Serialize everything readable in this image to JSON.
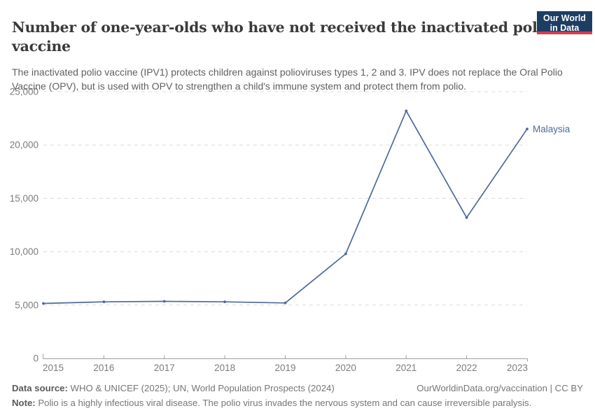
{
  "header": {
    "title": "Number of one-year-olds who have not received the inactivated polio vaccine",
    "subtitle": "The inactivated polio vaccine (IPV1) protects children against polioviruses types 1, 2 and 3. IPV does not replace the Oral Polio Vaccine (OPV), but is used with OPV to strengthen a child's immune system and protect them from polio.",
    "logo": {
      "line1": "Our World",
      "line2": "in Data",
      "bg_color": "#1d3d63",
      "accent_color": "#d73c4c"
    }
  },
  "chart_data": {
    "type": "line",
    "title": "Number of one-year-olds who have not received the inactivated polio vaccine",
    "x": [
      2015,
      2016,
      2017,
      2018,
      2019,
      2020,
      2021,
      2022,
      2023
    ],
    "series": [
      {
        "name": "Malaysia",
        "color": "#4c6a9c",
        "values": [
          5150,
          5300,
          5350,
          5300,
          5200,
          9800,
          23200,
          13200,
          21500
        ]
      }
    ],
    "xlabel": "",
    "ylabel": "",
    "ylim": [
      0,
      25000
    ],
    "yticks": [
      0,
      5000,
      10000,
      15000,
      20000,
      25000
    ],
    "grid": "horizontal dashed",
    "legend_position": "direct label at end of line",
    "axis_color": "#9e9e9e",
    "gridline_color": "#dcdcdc",
    "tick_label_color": "#7c7c7c"
  },
  "footer": {
    "datasource_label": "Data source:",
    "datasource_text": " WHO & UNICEF (2025); UN, World Population Prospects (2024)",
    "rights": "OurWorldinData.org/vaccination | CC BY",
    "note_label": "Note:",
    "note_text": " Polio is a highly infectious viral disease. The polio virus invades the nervous system and can cause irreversible paralysis."
  }
}
